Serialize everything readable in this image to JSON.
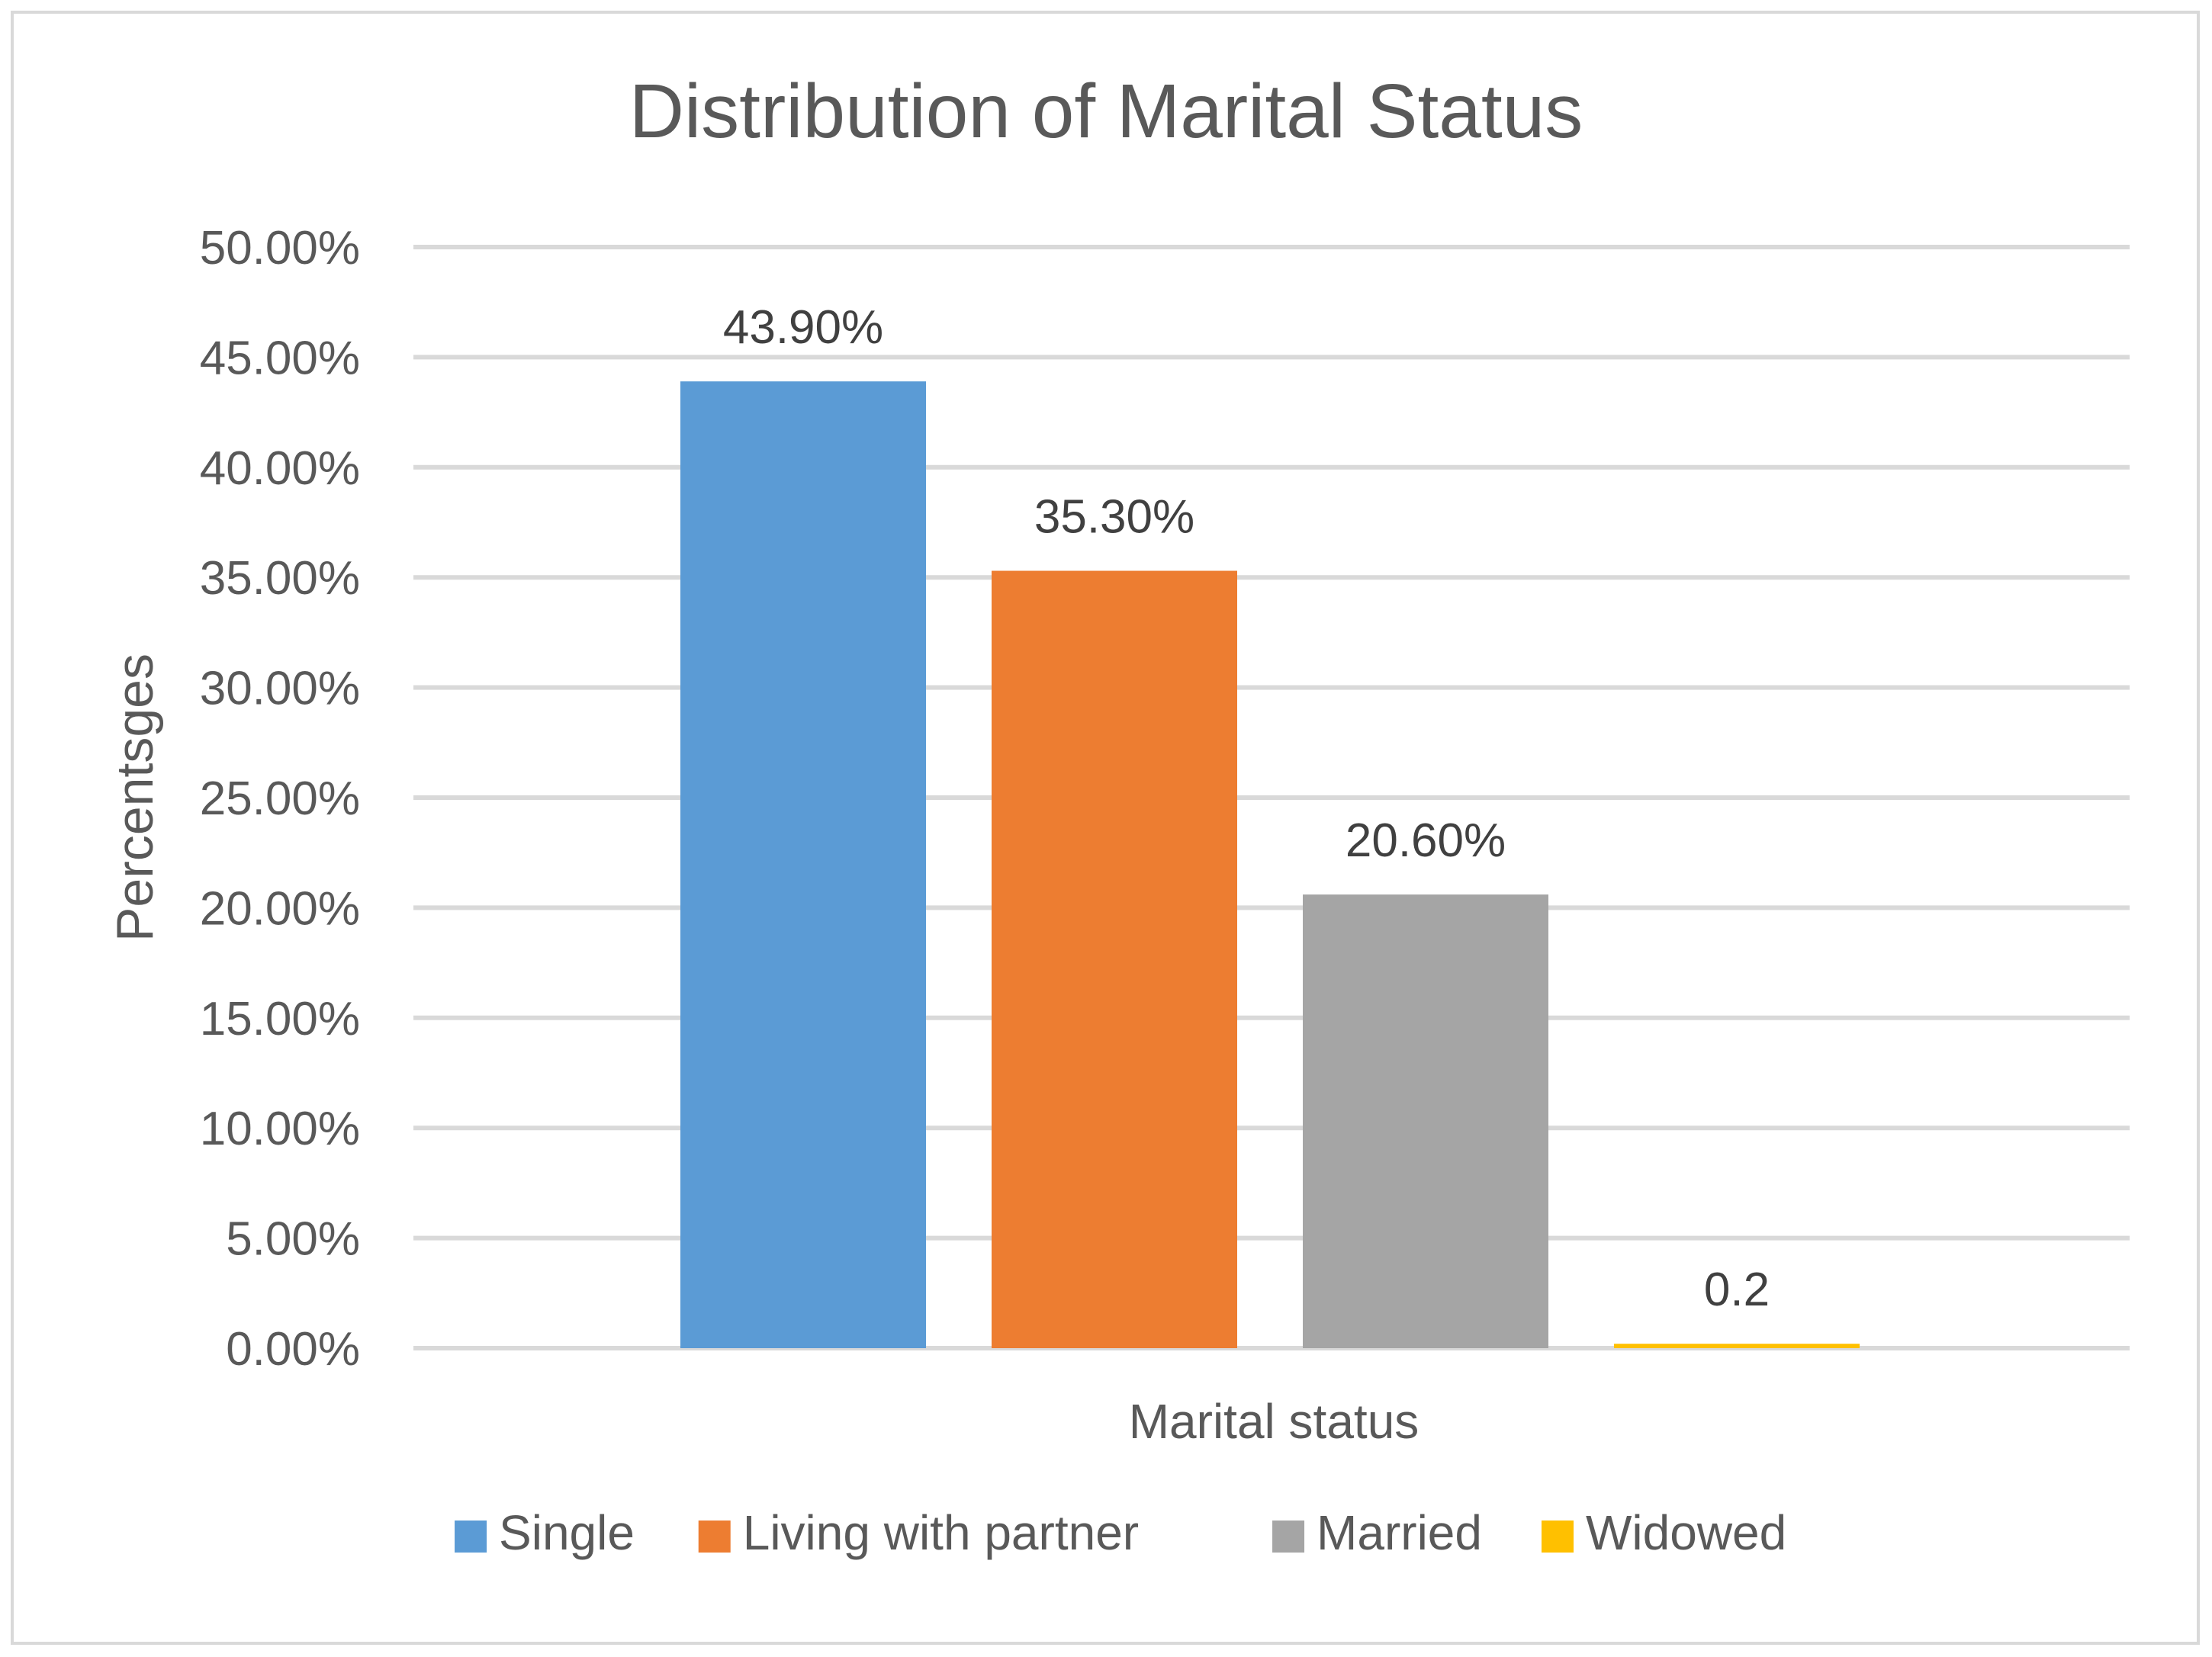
{
  "chart_data": {
    "type": "bar",
    "title": "Distribution of Marital Status",
    "xlabel": "Marital status",
    "ylabel": "Percentsges",
    "ylim": [
      0,
      50
    ],
    "ytick_step": 5,
    "ytick_format": "percent_2dp",
    "grid": true,
    "legend_position": "bottom",
    "categories": [
      "Marital status"
    ],
    "series": [
      {
        "name": "Single",
        "values": [
          43.9
        ],
        "label": "43.90%",
        "color": "#5b9bd5"
      },
      {
        "name": "Living with partner",
        "values": [
          35.3
        ],
        "label": "35.30%",
        "color": "#ed7d31"
      },
      {
        "name": "Married",
        "values": [
          20.6
        ],
        "label": "20.60%",
        "color": "#a5a5a5"
      },
      {
        "name": "Widowed",
        "values": [
          0.2
        ],
        "label": "0.2",
        "color": "#ffc000"
      }
    ],
    "colors": {
      "grid": "#d9d9d9",
      "text": "#595959",
      "label_text": "#404040"
    }
  }
}
